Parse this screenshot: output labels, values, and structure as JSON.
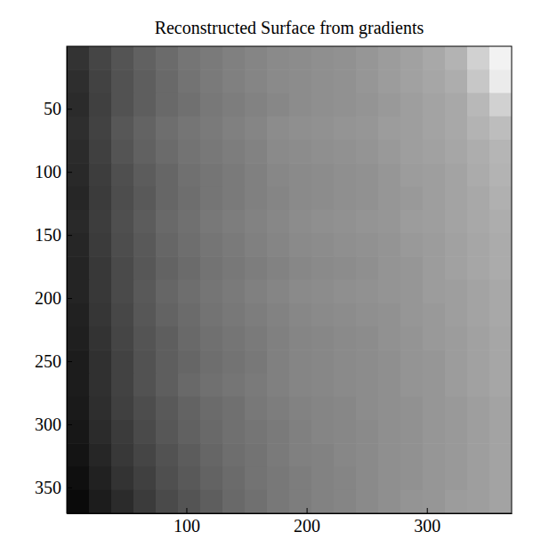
{
  "chart_data": {
    "type": "heatmap",
    "title": "Reconstructed Surface from gradients",
    "color": "gray",
    "xlim": [
      0.5,
      370.5
    ],
    "xticks": [
      100,
      200,
      300
    ],
    "ylim": [
      0.5,
      370.5
    ],
    "yticks": [
      50,
      100,
      150,
      200,
      250,
      300,
      350
    ],
    "zlim": [
      0,
      1
    ],
    "values": [
      [
        0.2,
        0.27,
        0.33,
        0.38,
        0.42,
        0.46,
        0.48,
        0.5,
        0.52,
        0.54,
        0.55,
        0.56,
        0.57,
        0.59,
        0.61,
        0.63,
        0.66,
        0.7,
        0.82,
        0.95
      ],
      [
        0.18,
        0.26,
        0.32,
        0.37,
        0.41,
        0.45,
        0.48,
        0.5,
        0.52,
        0.54,
        0.55,
        0.56,
        0.57,
        0.59,
        0.61,
        0.63,
        0.65,
        0.68,
        0.78,
        0.92
      ],
      [
        0.17,
        0.25,
        0.32,
        0.37,
        0.41,
        0.44,
        0.47,
        0.49,
        0.51,
        0.53,
        0.55,
        0.56,
        0.57,
        0.58,
        0.6,
        0.62,
        0.64,
        0.66,
        0.72,
        0.82
      ],
      [
        0.18,
        0.26,
        0.34,
        0.39,
        0.43,
        0.46,
        0.48,
        0.5,
        0.52,
        0.55,
        0.56,
        0.57,
        0.58,
        0.59,
        0.61,
        0.62,
        0.64,
        0.66,
        0.7,
        0.74
      ],
      [
        0.17,
        0.25,
        0.33,
        0.38,
        0.42,
        0.45,
        0.47,
        0.49,
        0.51,
        0.54,
        0.55,
        0.56,
        0.57,
        0.58,
        0.6,
        0.62,
        0.63,
        0.65,
        0.68,
        0.71
      ],
      [
        0.16,
        0.24,
        0.31,
        0.36,
        0.4,
        0.44,
        0.46,
        0.48,
        0.5,
        0.53,
        0.54,
        0.55,
        0.56,
        0.57,
        0.59,
        0.61,
        0.62,
        0.64,
        0.67,
        0.7
      ],
      [
        0.15,
        0.23,
        0.3,
        0.35,
        0.4,
        0.43,
        0.46,
        0.48,
        0.5,
        0.52,
        0.54,
        0.55,
        0.56,
        0.57,
        0.59,
        0.6,
        0.62,
        0.64,
        0.66,
        0.69
      ],
      [
        0.16,
        0.24,
        0.31,
        0.36,
        0.41,
        0.44,
        0.47,
        0.49,
        0.51,
        0.53,
        0.55,
        0.56,
        0.57,
        0.58,
        0.59,
        0.61,
        0.62,
        0.64,
        0.66,
        0.68
      ],
      [
        0.15,
        0.23,
        0.3,
        0.35,
        0.4,
        0.43,
        0.46,
        0.48,
        0.5,
        0.52,
        0.54,
        0.55,
        0.56,
        0.57,
        0.58,
        0.6,
        0.61,
        0.63,
        0.65,
        0.67
      ],
      [
        0.14,
        0.22,
        0.29,
        0.34,
        0.39,
        0.42,
        0.45,
        0.47,
        0.49,
        0.51,
        0.53,
        0.54,
        0.55,
        0.56,
        0.58,
        0.59,
        0.61,
        0.63,
        0.65,
        0.67
      ],
      [
        0.14,
        0.22,
        0.29,
        0.35,
        0.4,
        0.43,
        0.46,
        0.48,
        0.5,
        0.52,
        0.54,
        0.55,
        0.56,
        0.57,
        0.58,
        0.59,
        0.61,
        0.62,
        0.64,
        0.66
      ],
      [
        0.13,
        0.21,
        0.28,
        0.34,
        0.39,
        0.42,
        0.45,
        0.47,
        0.49,
        0.51,
        0.53,
        0.54,
        0.55,
        0.56,
        0.57,
        0.59,
        0.6,
        0.62,
        0.64,
        0.66
      ],
      [
        0.12,
        0.2,
        0.27,
        0.33,
        0.37,
        0.41,
        0.44,
        0.46,
        0.48,
        0.5,
        0.52,
        0.53,
        0.54,
        0.55,
        0.57,
        0.58,
        0.6,
        0.61,
        0.63,
        0.65
      ],
      [
        0.11,
        0.19,
        0.26,
        0.32,
        0.37,
        0.4,
        0.43,
        0.45,
        0.47,
        0.5,
        0.52,
        0.53,
        0.54,
        0.55,
        0.56,
        0.58,
        0.59,
        0.61,
        0.63,
        0.65
      ],
      [
        0.11,
        0.19,
        0.26,
        0.32,
        0.37,
        0.41,
        0.44,
        0.46,
        0.48,
        0.5,
        0.52,
        0.53,
        0.54,
        0.55,
        0.56,
        0.58,
        0.59,
        0.61,
        0.63,
        0.65
      ],
      [
        0.1,
        0.18,
        0.25,
        0.3,
        0.35,
        0.39,
        0.42,
        0.44,
        0.47,
        0.49,
        0.51,
        0.52,
        0.53,
        0.55,
        0.56,
        0.57,
        0.59,
        0.6,
        0.62,
        0.64
      ],
      [
        0.09,
        0.17,
        0.23,
        0.29,
        0.34,
        0.38,
        0.41,
        0.44,
        0.46,
        0.48,
        0.5,
        0.52,
        0.53,
        0.54,
        0.56,
        0.57,
        0.59,
        0.6,
        0.62,
        0.64
      ],
      [
        0.08,
        0.15,
        0.22,
        0.27,
        0.32,
        0.36,
        0.4,
        0.43,
        0.45,
        0.48,
        0.5,
        0.51,
        0.53,
        0.54,
        0.56,
        0.57,
        0.59,
        0.6,
        0.62,
        0.64
      ],
      [
        0.06,
        0.13,
        0.2,
        0.25,
        0.31,
        0.35,
        0.39,
        0.42,
        0.45,
        0.47,
        0.49,
        0.51,
        0.52,
        0.54,
        0.56,
        0.57,
        0.59,
        0.6,
        0.62,
        0.64
      ],
      [
        0.04,
        0.11,
        0.17,
        0.23,
        0.29,
        0.33,
        0.37,
        0.41,
        0.44,
        0.47,
        0.49,
        0.51,
        0.52,
        0.54,
        0.56,
        0.58,
        0.59,
        0.61,
        0.62,
        0.64
      ]
    ]
  }
}
